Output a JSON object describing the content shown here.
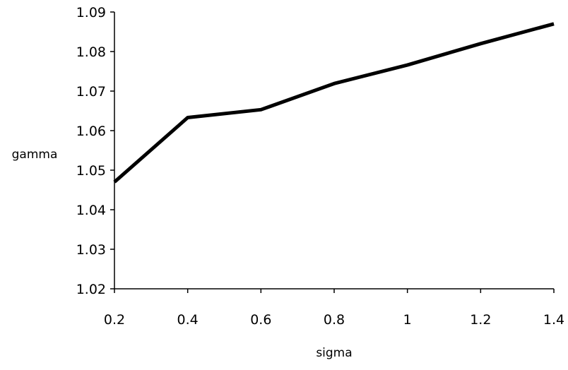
{
  "chart_data": {
    "type": "line",
    "title": "",
    "xlabel": "sigma",
    "ylabel": "gamma",
    "x": [
      0.2,
      0.4,
      0.6,
      0.8,
      1.0,
      1.2,
      1.4
    ],
    "x_tick_labels": [
      "0.2",
      "0.4",
      "0.6",
      "0.8",
      "1",
      "1.2",
      "1.4"
    ],
    "y_tick_labels": [
      "1.02",
      "1.03",
      "1.04",
      "1.05",
      "1.06",
      "1.07",
      "1.08",
      "1.09"
    ],
    "y_ticks": [
      1.02,
      1.03,
      1.04,
      1.05,
      1.06,
      1.07,
      1.08,
      1.09
    ],
    "xlim": [
      0.2,
      1.4
    ],
    "ylim": [
      1.02,
      1.09
    ],
    "grid": false,
    "legend": "none",
    "series": [
      {
        "values": [
          1.047,
          1.0633,
          1.0653,
          1.0719,
          1.0766,
          1.082,
          1.087
        ],
        "color": "#000000"
      }
    ]
  }
}
